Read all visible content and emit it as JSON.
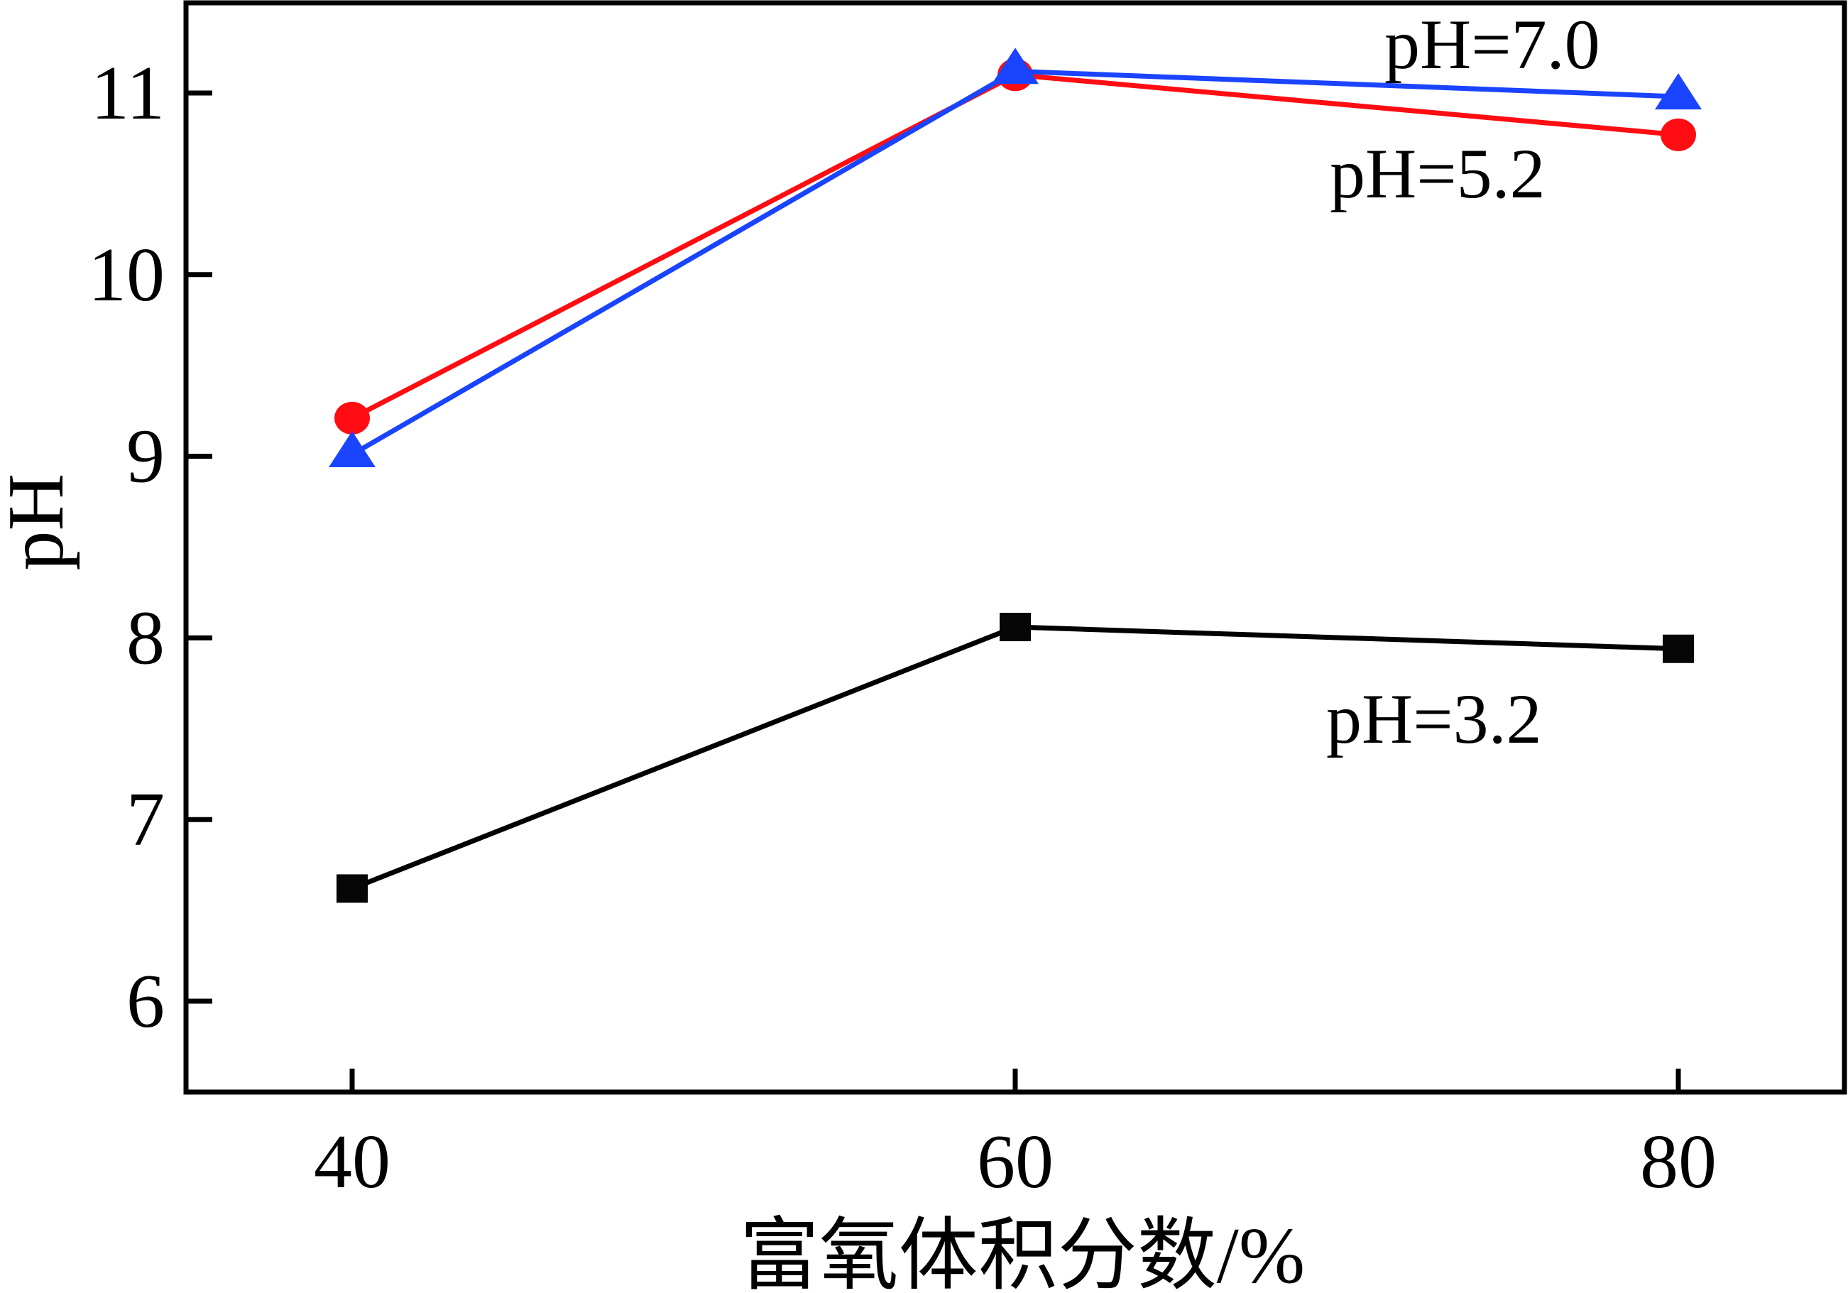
{
  "chart_data": {
    "type": "line",
    "title": "",
    "xlabel": "富氧体积分数/%",
    "ylabel": "pH",
    "x": [
      40,
      60,
      80
    ],
    "xlim": [
      35,
      85
    ],
    "ylim": [
      5.55,
      11.5
    ],
    "xticks": [
      40,
      60,
      80
    ],
    "xtick_labels": [
      "40",
      "60",
      "80"
    ],
    "yticks": [
      6,
      7,
      8,
      9,
      10,
      11
    ],
    "ytick_labels": [
      "6",
      "7",
      "8",
      "9",
      "10",
      "11"
    ],
    "grid": false,
    "legend": "none (inline annotations)",
    "series": [
      {
        "name": "pH=3.2",
        "label": "pH=3.2",
        "color": "#000000",
        "marker": "square",
        "values": [
          6.62,
          8.06,
          7.94
        ]
      },
      {
        "name": "pH=5.2",
        "label": "pH=5.2",
        "color": "#ff0d12",
        "marker": "circle",
        "values": [
          9.21,
          11.1,
          10.77
        ]
      },
      {
        "name": "pH=7.0",
        "label": "pH=7.0",
        "color": "#1a44ff",
        "marker": "triangle",
        "values": [
          9.01,
          11.12,
          10.98
        ]
      }
    ]
  }
}
